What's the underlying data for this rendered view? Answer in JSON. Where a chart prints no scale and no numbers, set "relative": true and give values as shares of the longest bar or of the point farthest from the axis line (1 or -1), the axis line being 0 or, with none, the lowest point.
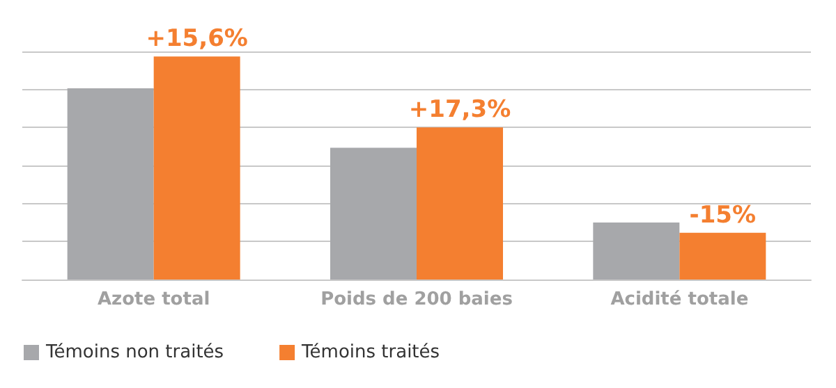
{
  "chart_data": {
    "type": "bar",
    "relative": true,
    "categories": [
      "Azote total",
      "Poids de 200 baies",
      "Acidité totale"
    ],
    "series": [
      {
        "name": "Témoins non traités",
        "color": "#a7a8ab",
        "values": [
          0.858,
          0.591,
          0.256
        ]
      },
      {
        "name": "Témoins traités",
        "color": "#f47f30",
        "values": [
          1,
          0.682,
          0.21
        ]
      }
    ],
    "annotations": [
      {
        "text": "+15,6%",
        "x": "Azote total",
        "y": 1
      },
      {
        "text": "+17,3%",
        "x": "Poids de 200 baies",
        "y": 0.682
      },
      {
        "text": "-15%",
        "x": "Acidité totale",
        "y": 0.21
      }
    ],
    "grid": "y",
    "legend": "bottom left"
  }
}
